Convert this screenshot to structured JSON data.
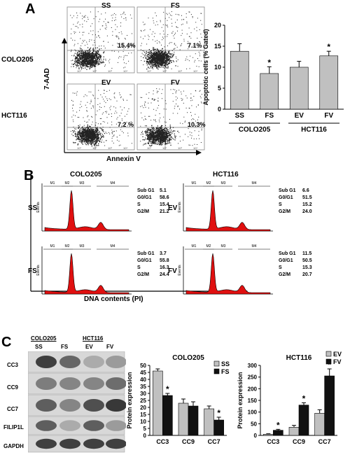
{
  "panels": {
    "A": {
      "letter": "A"
    },
    "B": {
      "letter": "B"
    },
    "C": {
      "letter": "C"
    }
  },
  "flow": {
    "row_labels": [
      "COLO205",
      "HCT116"
    ],
    "y_axis_label": "7-AAD",
    "x_axis_label": "Annexin V",
    "plots": [
      {
        "title": "SS",
        "pct": "15.4%"
      },
      {
        "title": "FS",
        "pct": "7.1%"
      },
      {
        "title": "EV",
        "pct": "7.2 %"
      },
      {
        "title": "FV",
        "pct": "10.3%"
      }
    ]
  },
  "cellcycle": {
    "headers": [
      "COLO205",
      "HCT116"
    ],
    "x_axis_label": "DNA contents (PI)",
    "gates": [
      "M1",
      "M2",
      "M3",
      "M4"
    ],
    "y_axis": "Events",
    "stat_labels": [
      "Sub G1",
      "G0/G1",
      "S",
      "G2/M"
    ],
    "plots": [
      {
        "name": "SS",
        "stats": [
          "5.1",
          "58.6",
          "15.4",
          "21.2"
        ]
      },
      {
        "name": "EV",
        "stats": [
          "6.6",
          "51.5",
          "15.2",
          "24.0"
        ]
      },
      {
        "name": "FS",
        "stats": [
          "3.7",
          "55.8",
          "16.3",
          "24.4"
        ]
      },
      {
        "name": "FV",
        "stats": [
          "11.5",
          "50.5",
          "15.3",
          "20.7"
        ]
      }
    ]
  },
  "western": {
    "groups": [
      "COLO205",
      "HCT116"
    ],
    "lanes": [
      "SS",
      "FS",
      "EV",
      "FV"
    ],
    "proteins": [
      "CC3",
      "CC9",
      "CC7",
      "FILIP1L",
      "GAPDH"
    ]
  },
  "chart_data": [
    {
      "type": "bar",
      "categories": [
        "SS",
        "FS",
        "EV",
        "FV"
      ],
      "groups": [
        "COLO205",
        "HCT116"
      ],
      "values": [
        13.8,
        8.5,
        10.0,
        12.7
      ],
      "errors": [
        1.8,
        1.6,
        1.4,
        1.1
      ],
      "significant": [
        false,
        true,
        false,
        true
      ],
      "ylabel": "Apoptotic cells (% Gated)",
      "ylim": [
        0,
        20
      ],
      "yticks": [
        0,
        5,
        10,
        15,
        20
      ],
      "sig_mark": "*",
      "color": "#c0c0c0"
    },
    {
      "type": "bar",
      "title": "COLO205",
      "categories": [
        "CC3",
        "CC9",
        "CC7"
      ],
      "ylabel": "Protein expression",
      "ylim": [
        0,
        50
      ],
      "yticks": [
        0,
        5,
        10,
        15,
        20,
        25,
        30,
        35,
        40,
        45,
        50
      ],
      "series": [
        {
          "name": "SS",
          "values": [
            46,
            23,
            19
          ],
          "errors": [
            1.5,
            3,
            2
          ],
          "color": "#c0c0c0"
        },
        {
          "name": "FS",
          "values": [
            28.5,
            21,
            11
          ],
          "errors": [
            1.5,
            3,
            2
          ],
          "color": "#111111",
          "significant": [
            true,
            false,
            true
          ]
        }
      ],
      "sig_mark": "*",
      "legend": "top-right"
    },
    {
      "type": "bar",
      "title": "HCT116",
      "categories": [
        "CC3",
        "CC9",
        "CC7"
      ],
      "ylabel": "Protein expression",
      "ylim": [
        0,
        300
      ],
      "yticks": [
        0,
        50,
        100,
        150,
        200,
        250,
        300
      ],
      "series": [
        {
          "name": "EV",
          "values": [
            5,
            35,
            95
          ],
          "errors": [
            2,
            8,
            15
          ],
          "color": "#c0c0c0"
        },
        {
          "name": "FV",
          "values": [
            22,
            130,
            255
          ],
          "errors": [
            4,
            10,
            30
          ],
          "color": "#111111",
          "significant": [
            true,
            true,
            true
          ]
        }
      ],
      "sig_mark": "*",
      "legend": "top-right"
    }
  ]
}
